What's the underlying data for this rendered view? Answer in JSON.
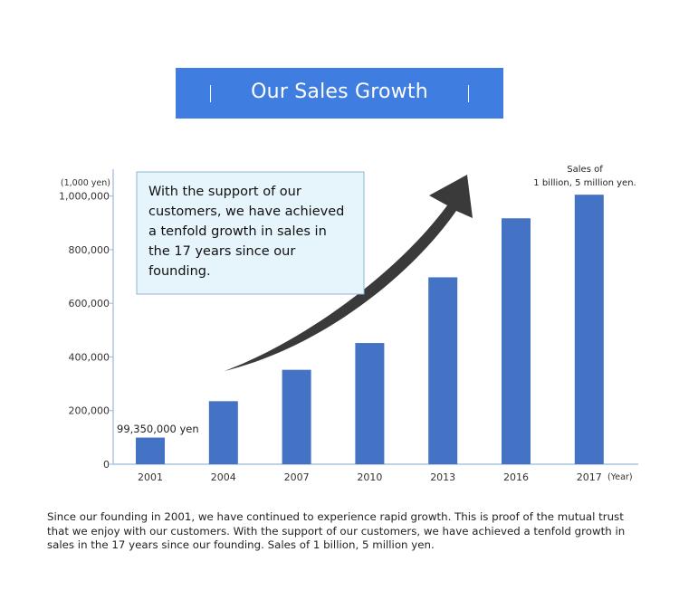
{
  "title": "Our Sales Growth",
  "description": "Since our founding in 2001, we have continued to experience rapid growth. This is proof of the mutual trust that we enjoy with our customers. With the support of our customers, we have achieved a tenfold growth in sales in the 17 years since our founding. Sales of 1 billion, 5 million yen.",
  "colors": {
    "banner": "#3f7ee0",
    "bar": "#4472c4",
    "callout_bg": "#e6f4fb",
    "callout_border": "#8fb6d3",
    "arrow": "#3a3a3a"
  },
  "chart_data": {
    "type": "bar",
    "categories": [
      "2001",
      "2004",
      "2007",
      "2010",
      "2013",
      "2016",
      "2017"
    ],
    "values": [
      99350,
      235000,
      352000,
      452000,
      697000,
      917000,
      1005000
    ],
    "y_unit_label": "(1,000 yen)",
    "x_unit_label": "(Year)",
    "ylim": [
      0,
      1100000
    ],
    "yticks": [
      0,
      200000,
      400000,
      600000,
      800000,
      1000000
    ],
    "ytick_labels": [
      "0",
      "200,000",
      "400,000",
      "600,000",
      "800,000",
      "1,000,000"
    ],
    "grid": false,
    "annotations": {
      "first_bar_label": "99,350,000 yen",
      "last_bar_label_line1": "Sales of",
      "last_bar_label_line2": "1 billion, 5 million yen.",
      "callout_lines": [
        "With the support of our",
        "customers, we have achieved",
        "a tenfold growth in sales in",
        "the 17 years since our",
        "founding."
      ]
    }
  }
}
